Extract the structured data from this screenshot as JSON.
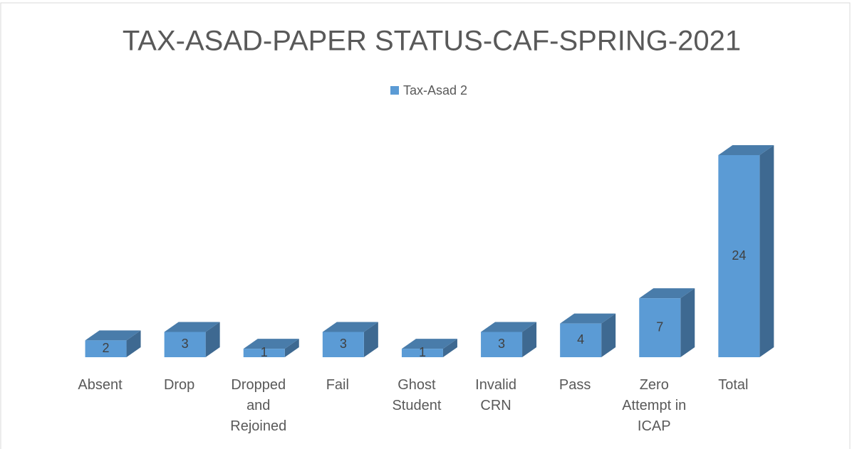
{
  "chart_data": {
    "type": "bar3d",
    "title": "TAX-ASAD-PAPER STATUS-CAF-SPRING-2021",
    "categories": [
      "Absent",
      "Drop",
      "Dropped and Rejoined",
      "Fail",
      "Ghost Student",
      "Invalid CRN",
      "Pass",
      "Zero Attempt in ICAP",
      "Total"
    ],
    "series": [
      {
        "name": "Tax-Asad 2",
        "color": "#5b9bd5",
        "values": [
          2,
          3,
          1,
          3,
          1,
          3,
          4,
          7,
          24
        ]
      }
    ]
  }
}
